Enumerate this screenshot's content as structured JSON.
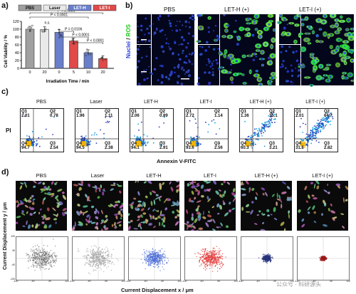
{
  "panel_a": {
    "letter": "a)",
    "ylabel": "Cell Viability / %",
    "xlabel": "Irradiation Time / min",
    "legend": [
      "PBS",
      "Laser",
      "LET-H",
      "LET-I"
    ],
    "legend_colors": [
      "#a0a0a0",
      "#e9e9e9",
      "#6a7fcb",
      "#e04a4a"
    ],
    "yticks": [
      "0",
      "20",
      "40",
      "60",
      "80",
      "100",
      "120"
    ],
    "xticks": [
      "0",
      "20",
      "0",
      "5",
      "10",
      "20"
    ],
    "sig": [
      {
        "label": "P < 0.0001"
      },
      {
        "label": "P < 0.0001"
      },
      {
        "label": "P = 0.0106"
      },
      {
        "label": "P < 0.0001"
      },
      {
        "label": "P < 0.0001"
      },
      {
        "label": "n.s."
      }
    ]
  },
  "chart_data": {
    "type": "bar",
    "categories": [
      "0",
      "20",
      "0",
      "5",
      "10",
      "20"
    ],
    "series": [
      {
        "name": "PBS",
        "values": [
          100,
          null,
          null,
          null,
          null,
          null
        ]
      },
      {
        "name": "Laser",
        "values": [
          null,
          99,
          null,
          null,
          null,
          null
        ]
      },
      {
        "name": "LET-H",
        "values": [
          null,
          null,
          92,
          75,
          40,
          null
        ]
      },
      {
        "name": "LET-I",
        "values": [
          null,
          null,
          null,
          70,
          40,
          25
        ]
      }
    ],
    "bar_series": [
      "PBS",
      "Laser",
      "LET-H",
      "LET-I",
      "LET-H",
      "LET-I"
    ],
    "values": [
      100,
      99,
      92,
      70,
      40,
      25
    ],
    "xlabel": "Irradiation Time / min",
    "ylabel": "Cell Viability / %",
    "ylim": [
      0,
      120
    ]
  },
  "panel_b": {
    "letter": "b)",
    "cols": [
      "PBS",
      "LET-H (+)",
      "LET-I (+)"
    ],
    "side_label_1": "Nuclei",
    "side_label_2": "ROS",
    "side_label_sep": " / "
  },
  "panel_c": {
    "letter": "c)",
    "ylabel": "PI",
    "xlabel": "Annexin V-FITC",
    "plots": [
      {
        "title": "PBS",
        "q1": "2.01",
        "q2": "0.78",
        "q3": "2.54",
        "q4": "94.7"
      },
      {
        "title": "Laser",
        "q1": "1.96",
        "q2": "1.11",
        "q3": "2.38",
        "q4": "94.5"
      },
      {
        "title": "LET-H",
        "q1": "2.06",
        "q2": "0.89",
        "q3": "2.91",
        "q4": "94.1"
      },
      {
        "title": "LET-I",
        "q1": "2.72",
        "q2": "1.14",
        "q3": "2.56",
        "q4": "93.6"
      },
      {
        "title": "LET-H (+)",
        "q1": "1.36",
        "q2": "35.1",
        "q3": "3.21",
        "q4": "60.3"
      },
      {
        "title": "LET-I (+)",
        "q1": "2.01",
        "q2": "64.7",
        "q3": "2.82",
        "q4": "31.8"
      }
    ],
    "quad_names": [
      "Q1",
      "Q2",
      "Q3",
      "Q4"
    ]
  },
  "panel_d": {
    "letter": "d)",
    "cols": [
      "PBS",
      "Laser",
      "LET-H",
      "LET-I",
      "LET-H (+)",
      "LET-I (+)"
    ],
    "ylabel": "Current Displacement y / μm",
    "xlabel": "Current Displacement x / μm",
    "colors": [
      "#7a7a7a",
      "#a8a8a8",
      "#4f6fd6",
      "#e23a3a",
      "#28357a",
      "#9a1a1a"
    ],
    "spread": [
      1.0,
      1.0,
      0.75,
      0.85,
      0.3,
      0.18
    ],
    "cell_density": [
      1.0,
      1.0,
      1.0,
      1.0,
      0.55,
      0.4
    ],
    "yticks": [
      "120",
      "80",
      "40",
      "0",
      "-40",
      "-80",
      "-120"
    ],
    "xticks": [
      "-120",
      "-80",
      "-40",
      "0",
      "40",
      "80",
      "120"
    ],
    "watermark": "公众号 · 科研源头"
  }
}
